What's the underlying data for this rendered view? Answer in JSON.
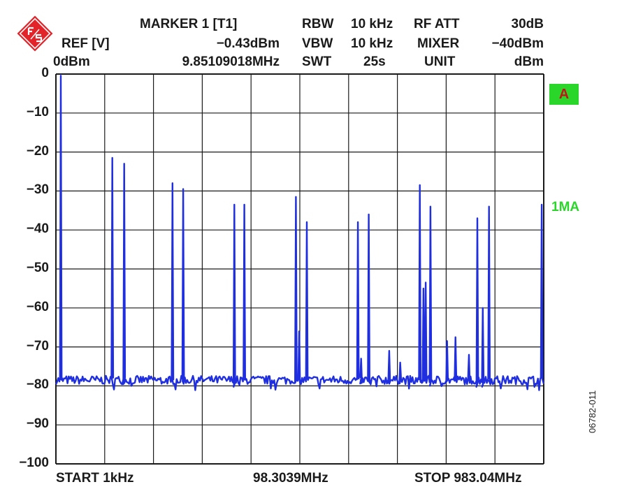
{
  "header": {
    "marker_title": "MARKER 1 [T1]",
    "marker_level": "−0.43dBm",
    "marker_freq": "9.85109018MHz",
    "ref_label": "REF [V]",
    "ref_level": "0dBm",
    "rbw_label": "RBW",
    "rbw_value": "10 kHz",
    "vbw_label": "VBW",
    "vbw_value": "10 kHz",
    "swt_label": "SWT",
    "swt_value": "25s",
    "rfatt_label": "RF ATT",
    "rfatt_value": "30dB",
    "mixer_label": "MIXER",
    "mixer_value": "−40dBm",
    "unit_label": "UNIT",
    "unit_value": "dBm"
  },
  "trace_badge": "A",
  "trace_mode": "1MA",
  "figure_id": "06782-011",
  "footer": {
    "start": "START 1kHz",
    "center": "98.3039MHz",
    "stop": "STOP 983.04MHz"
  },
  "colors": {
    "trace": "#1f2fe0",
    "grid": "#1a1a1a",
    "badge_bg": "#2bd62b",
    "badge_text": "#c0151b",
    "logo": "#e3232a"
  },
  "chart_data": {
    "type": "line",
    "title": "",
    "xlabel": "",
    "ylabel": "",
    "x_unit": "MHz",
    "xlim": [
      0.001,
      983.04
    ],
    "ylim": [
      -100,
      0
    ],
    "grid": true,
    "y_ticks": [
      "0",
      "−10",
      "−20",
      "−30",
      "−40",
      "−50",
      "−60",
      "−70",
      "−80",
      "−90",
      "−100"
    ],
    "noise_floor": -78.5,
    "series": [
      {
        "peaks": [
          {
            "x": 9.85,
            "y": -0.43
          },
          {
            "x": 113.7,
            "y": -21.5
          },
          {
            "x": 137.6,
            "y": -23
          },
          {
            "x": 234.9,
            "y": -28
          },
          {
            "x": 256.5,
            "y": -29.5
          },
          {
            "x": 359.6,
            "y": -33.5
          },
          {
            "x": 379.7,
            "y": -33.5
          },
          {
            "x": 483.6,
            "y": -31.5
          },
          {
            "x": 490.2,
            "y": -66
          },
          {
            "x": 505.6,
            "y": -38
          },
          {
            "x": 608.6,
            "y": -38
          },
          {
            "x": 615.0,
            "y": -73
          },
          {
            "x": 630.4,
            "y": -36
          },
          {
            "x": 671.7,
            "y": -71
          },
          {
            "x": 693.7,
            "y": -74
          },
          {
            "x": 733.4,
            "y": -28.5
          },
          {
            "x": 740.7,
            "y": -55
          },
          {
            "x": 745.1,
            "y": -53.5
          },
          {
            "x": 754.7,
            "y": -34
          },
          {
            "x": 788.3,
            "y": -68.5
          },
          {
            "x": 805.2,
            "y": -67.5
          },
          {
            "x": 832.4,
            "y": -72
          },
          {
            "x": 849.3,
            "y": -37
          },
          {
            "x": 860.3,
            "y": -60
          },
          {
            "x": 872.8,
            "y": -34
          },
          {
            "x": 979.0,
            "y": -33.5
          }
        ]
      }
    ]
  }
}
